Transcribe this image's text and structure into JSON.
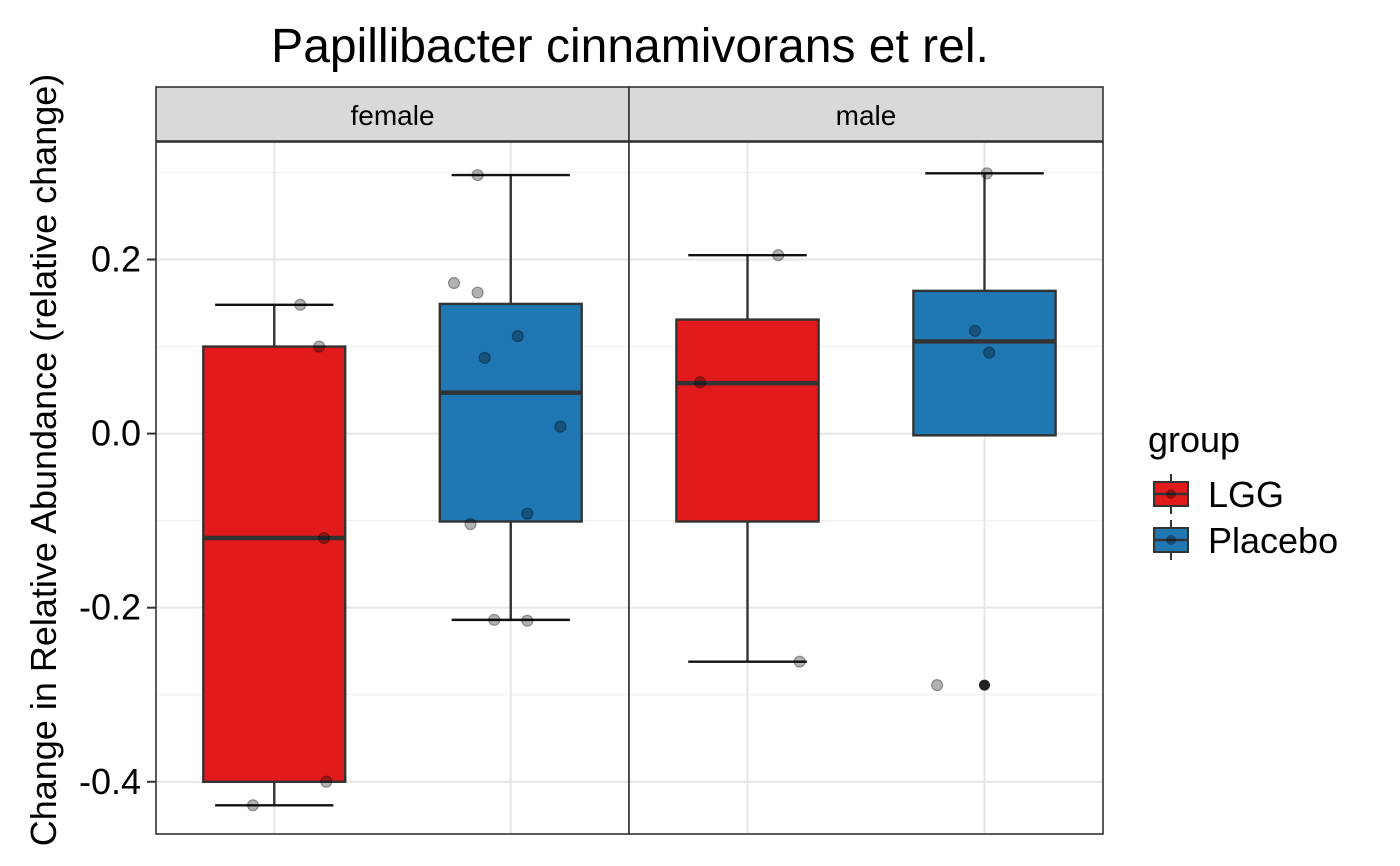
{
  "chart_data": {
    "type": "boxplot",
    "title": "Papillibacter cinnamivorans et rel.",
    "ylabel": "Change in Relative Abundance (relative change)",
    "xlabel": "",
    "ylim": [
      -0.46,
      0.335
    ],
    "yticks": [
      0.2,
      0.0,
      -0.2,
      -0.4
    ],
    "ytick_labels": [
      "0.2",
      "0.0",
      "-0.2",
      "-0.4"
    ],
    "grid": true,
    "legend": {
      "title": "group",
      "position": "right",
      "entries": [
        {
          "label": "LGG",
          "color": "#e31a1c"
        },
        {
          "label": "Placebo",
          "color": "#1f78b4"
        }
      ]
    },
    "panels": [
      {
        "label": "female",
        "boxes": [
          {
            "group": "LGG",
            "whisker_low": -0.427,
            "q1": -0.4,
            "median": -0.12,
            "q3": 0.1,
            "whisker_high": 0.148,
            "outliers": []
          },
          {
            "group": "Placebo",
            "whisker_low": -0.214,
            "q1": -0.101,
            "median": 0.047,
            "q3": 0.149,
            "whisker_high": 0.297,
            "outliers": []
          }
        ],
        "points": [
          {
            "group": "LGG",
            "offset": 0.11,
            "y": 0.148
          },
          {
            "group": "LGG",
            "offset": 0.19,
            "y": 0.1
          },
          {
            "group": "LGG",
            "offset": 0.21,
            "y": -0.12
          },
          {
            "group": "LGG",
            "offset": 0.22,
            "y": -0.4
          },
          {
            "group": "LGG",
            "offset": -0.09,
            "y": -0.427
          },
          {
            "group": "Placebo",
            "offset": -0.14,
            "y": 0.297
          },
          {
            "group": "Placebo",
            "offset": -0.24,
            "y": 0.173
          },
          {
            "group": "Placebo",
            "offset": -0.14,
            "y": 0.162
          },
          {
            "group": "Placebo",
            "offset": 0.03,
            "y": 0.112
          },
          {
            "group": "Placebo",
            "offset": -0.11,
            "y": 0.087
          },
          {
            "group": "Placebo",
            "offset": 0.21,
            "y": 0.008
          },
          {
            "group": "Placebo",
            "offset": 0.07,
            "y": -0.092
          },
          {
            "group": "Placebo",
            "offset": -0.17,
            "y": -0.104
          },
          {
            "group": "Placebo",
            "offset": -0.07,
            "y": -0.214
          },
          {
            "group": "Placebo",
            "offset": 0.07,
            "y": -0.215
          }
        ]
      },
      {
        "label": "male",
        "boxes": [
          {
            "group": "LGG",
            "whisker_low": -0.262,
            "q1": -0.101,
            "median": 0.058,
            "q3": 0.131,
            "whisker_high": 0.205,
            "outliers": []
          },
          {
            "group": "Placebo",
            "whisker_low": -0.002,
            "q1": -0.002,
            "median": 0.106,
            "q3": 0.164,
            "whisker_high": 0.299,
            "outliers": [
              -0.289
            ]
          }
        ],
        "points": [
          {
            "group": "LGG",
            "offset": 0.13,
            "y": 0.205
          },
          {
            "group": "LGG",
            "offset": -0.2,
            "y": 0.059
          },
          {
            "group": "LGG",
            "offset": 0.22,
            "y": -0.262
          },
          {
            "group": "Placebo",
            "offset": 0.01,
            "y": 0.299
          },
          {
            "group": "Placebo",
            "offset": -0.04,
            "y": 0.118
          },
          {
            "group": "Placebo",
            "offset": 0.02,
            "y": 0.093
          },
          {
            "group": "Placebo",
            "offset": -0.2,
            "y": -0.289
          }
        ]
      }
    ]
  }
}
